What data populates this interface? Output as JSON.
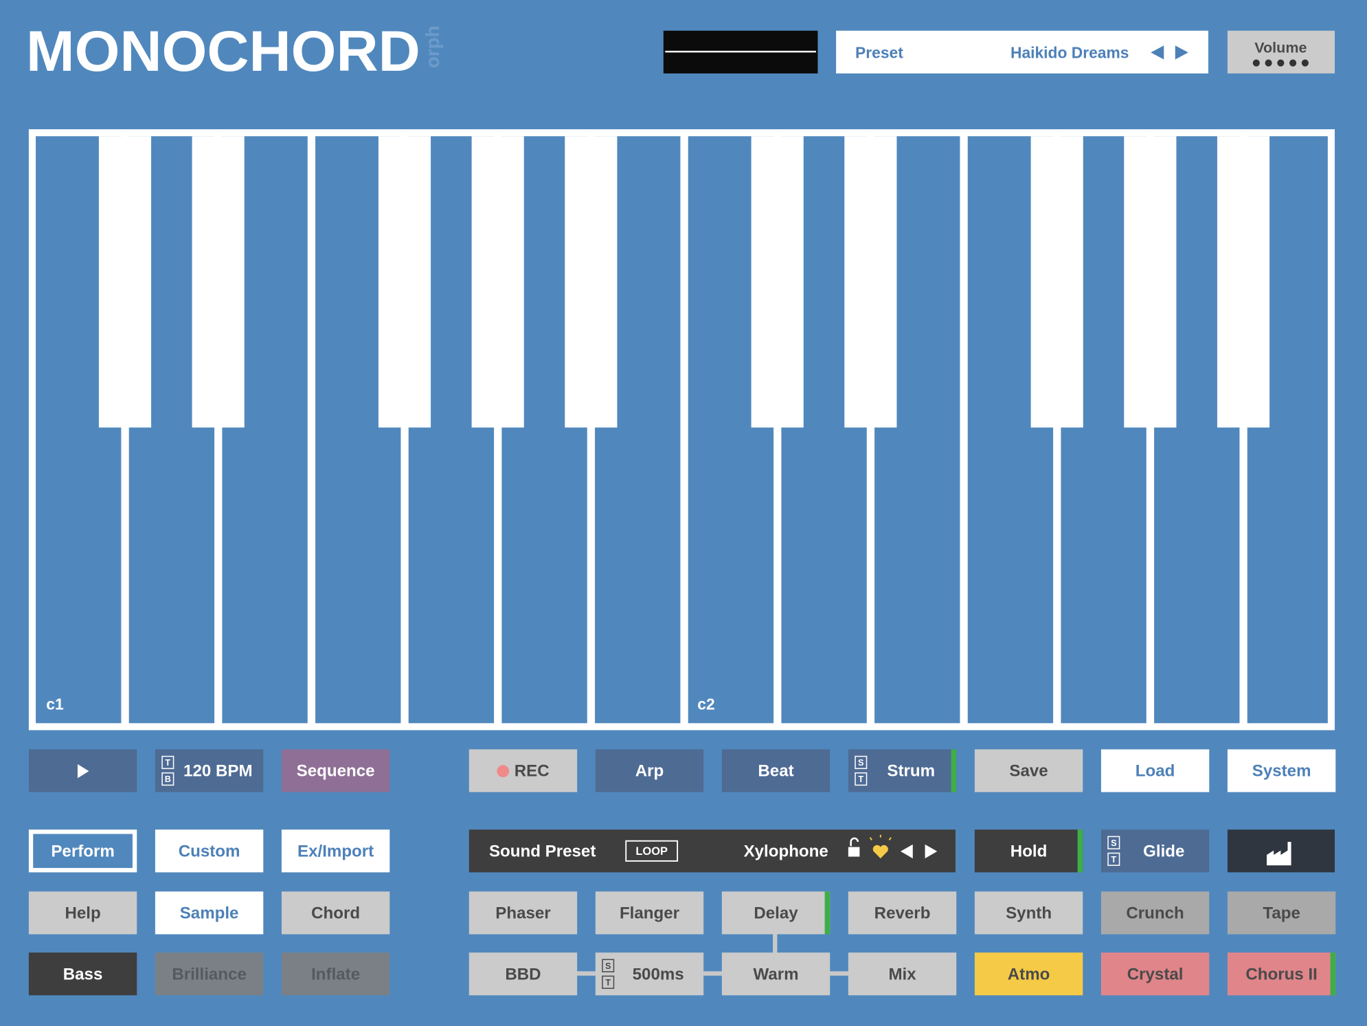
{
  "header": {
    "title": "MONOCHORD",
    "subtitle": "orph",
    "preset_label": "Preset",
    "preset_name": "Haikido Dreams",
    "volume_label": "Volume"
  },
  "keyboard": {
    "octave_labels": [
      "c1",
      "c2"
    ]
  },
  "sound_preset": {
    "label": "Sound Preset",
    "tag": "LOOP",
    "name": "Xylophone"
  },
  "buttons": [
    {
      "label": "120 BPM",
      "switch": [
        "T",
        "B"
      ]
    },
    {
      "label": "Sequence"
    },
    {
      "label": "REC"
    },
    {
      "label": "Arp"
    },
    {
      "label": "Beat"
    },
    {
      "label": "Strum",
      "switch": [
        "S",
        "T"
      ]
    },
    {
      "label": "Save"
    },
    {
      "label": "Load"
    },
    {
      "label": "System"
    },
    {
      "label": "Perform"
    },
    {
      "label": "Custom"
    },
    {
      "label": "Ex/Import"
    },
    {
      "label": "Hold"
    },
    {
      "label": "Glide",
      "switch": [
        "S",
        "T"
      ]
    },
    {
      "label": "Help"
    },
    {
      "label": "Sample"
    },
    {
      "label": "Chord"
    },
    {
      "label": "Phaser"
    },
    {
      "label": "Flanger"
    },
    {
      "label": "Delay"
    },
    {
      "label": "Reverb"
    },
    {
      "label": "Synth"
    },
    {
      "label": "Crunch"
    },
    {
      "label": "Tape"
    },
    {
      "label": "Bass"
    },
    {
      "label": "Brilliance"
    },
    {
      "label": "Inflate"
    },
    {
      "label": "BBD"
    },
    {
      "label": "500ms",
      "switch": [
        "S",
        "T"
      ]
    },
    {
      "label": "Warm"
    },
    {
      "label": "Mix"
    },
    {
      "label": "Atmo"
    },
    {
      "label": "Crystal"
    },
    {
      "label": "Chorus II"
    }
  ]
}
